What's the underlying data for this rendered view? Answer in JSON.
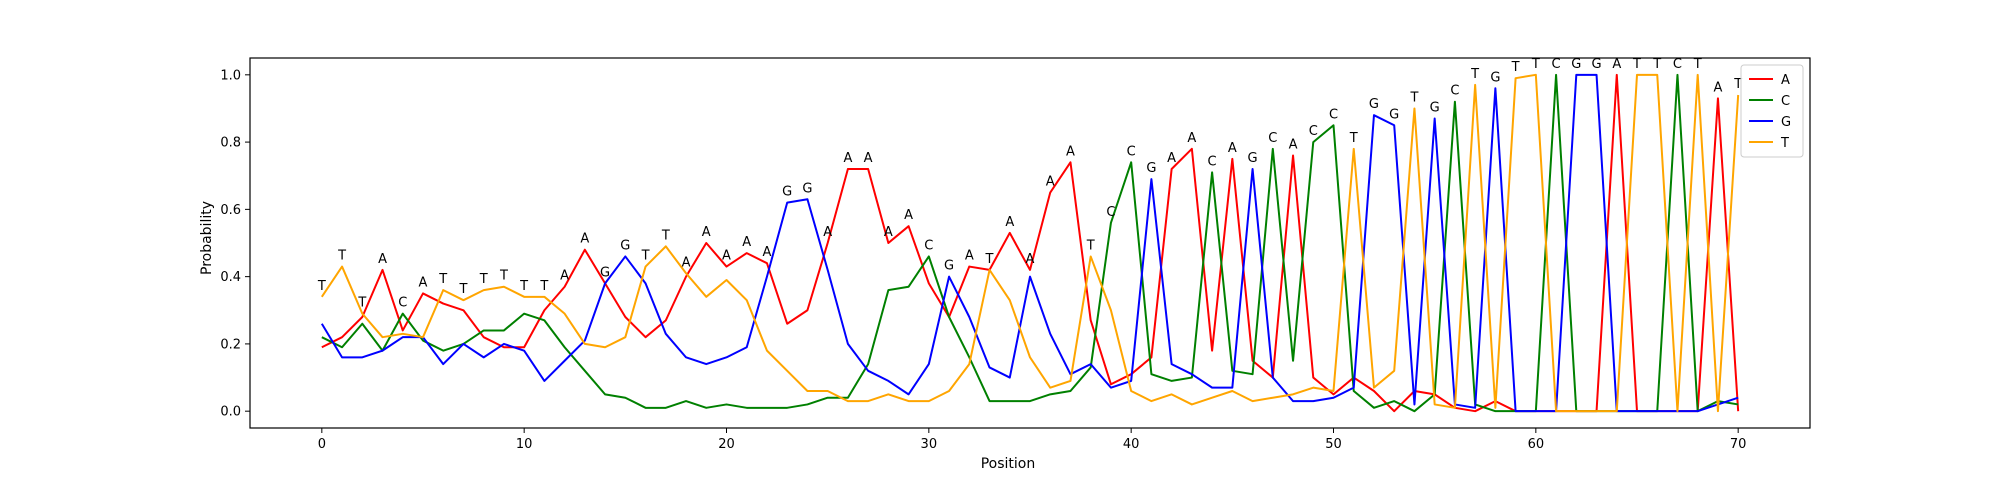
{
  "chart_data": {
    "type": "line",
    "title": "",
    "xlabel": "Position",
    "ylabel": "Probability",
    "xlim": [
      -3.55,
      73.55
    ],
    "ylim": [
      -0.05,
      1.05
    ],
    "xticks": [
      0,
      10,
      20,
      30,
      40,
      50,
      60,
      70
    ],
    "yticks": [
      0.0,
      0.2,
      0.4,
      0.6,
      0.8,
      1.0
    ],
    "grid": false,
    "legend_position": "top-right",
    "x": [
      0,
      1,
      2,
      3,
      4,
      5,
      6,
      7,
      8,
      9,
      10,
      11,
      12,
      13,
      14,
      15,
      16,
      17,
      18,
      19,
      20,
      21,
      22,
      23,
      24,
      25,
      26,
      27,
      28,
      29,
      30,
      31,
      32,
      33,
      34,
      35,
      36,
      37,
      38,
      39,
      40,
      41,
      42,
      43,
      44,
      45,
      46,
      47,
      48,
      49,
      50,
      51,
      52,
      53,
      54,
      55,
      56,
      57,
      58,
      59,
      60,
      61,
      62,
      63,
      64,
      65,
      66,
      67,
      68,
      69,
      70
    ],
    "series": [
      {
        "name": "A",
        "color": "#ff0000",
        "values": [
          0.19,
          0.22,
          0.28,
          0.42,
          0.24,
          0.35,
          0.32,
          0.3,
          0.22,
          0.19,
          0.19,
          0.3,
          0.37,
          0.48,
          0.38,
          0.28,
          0.22,
          0.27,
          0.4,
          0.5,
          0.43,
          0.47,
          0.44,
          0.26,
          0.3,
          0.5,
          0.72,
          0.72,
          0.5,
          0.55,
          0.38,
          0.28,
          0.43,
          0.42,
          0.53,
          0.42,
          0.65,
          0.74,
          0.27,
          0.08,
          0.11,
          0.16,
          0.72,
          0.78,
          0.18,
          0.75,
          0.15,
          0.1,
          0.76,
          0.1,
          0.05,
          0.1,
          0.06,
          0.0,
          0.06,
          0.05,
          0.01,
          0.0,
          0.03,
          0.0,
          0.0,
          0.0,
          0.0,
          0.0,
          1.0,
          0.0,
          0.0,
          0.0,
          0.0,
          0.93,
          0.0
        ]
      },
      {
        "name": "C",
        "color": "#008000",
        "values": [
          0.22,
          0.19,
          0.26,
          0.18,
          0.29,
          0.21,
          0.18,
          0.2,
          0.24,
          0.24,
          0.29,
          0.27,
          0.19,
          0.12,
          0.05,
          0.04,
          0.01,
          0.01,
          0.03,
          0.01,
          0.02,
          0.01,
          0.01,
          0.01,
          0.02,
          0.04,
          0.04,
          0.14,
          0.36,
          0.37,
          0.46,
          0.28,
          0.16,
          0.03,
          0.03,
          0.03,
          0.05,
          0.06,
          0.13,
          0.56,
          0.74,
          0.11,
          0.09,
          0.1,
          0.71,
          0.12,
          0.11,
          0.78,
          0.15,
          0.8,
          0.85,
          0.06,
          0.01,
          0.03,
          0.0,
          0.05,
          0.92,
          0.02,
          0.0,
          0.0,
          0.0,
          1.0,
          0.0,
          0.0,
          0.0,
          0.0,
          0.0,
          1.0,
          0.0,
          0.03,
          0.02
        ]
      },
      {
        "name": "G",
        "color": "#0000ff",
        "values": [
          0.26,
          0.16,
          0.16,
          0.18,
          0.22,
          0.22,
          0.14,
          0.2,
          0.16,
          0.2,
          0.18,
          0.09,
          0.15,
          0.21,
          0.38,
          0.46,
          0.38,
          0.23,
          0.16,
          0.14,
          0.16,
          0.19,
          0.4,
          0.62,
          0.63,
          0.42,
          0.2,
          0.12,
          0.09,
          0.05,
          0.14,
          0.4,
          0.28,
          0.13,
          0.1,
          0.4,
          0.23,
          0.11,
          0.14,
          0.07,
          0.09,
          0.69,
          0.14,
          0.11,
          0.07,
          0.07,
          0.72,
          0.1,
          0.03,
          0.03,
          0.04,
          0.07,
          0.88,
          0.85,
          0.02,
          0.87,
          0.02,
          0.01,
          0.96,
          0.0,
          0.0,
          0.0,
          1.0,
          1.0,
          0.0,
          0.0,
          0.0,
          0.0,
          0.0,
          0.02,
          0.04
        ]
      },
      {
        "name": "T",
        "color": "#ffa500",
        "values": [
          0.34,
          0.43,
          0.29,
          0.22,
          0.23,
          0.22,
          0.36,
          0.33,
          0.36,
          0.37,
          0.34,
          0.34,
          0.29,
          0.2,
          0.19,
          0.22,
          0.43,
          0.49,
          0.41,
          0.34,
          0.39,
          0.33,
          0.18,
          0.12,
          0.06,
          0.06,
          0.03,
          0.03,
          0.05,
          0.03,
          0.03,
          0.06,
          0.14,
          0.42,
          0.33,
          0.16,
          0.07,
          0.09,
          0.46,
          0.3,
          0.06,
          0.03,
          0.05,
          0.02,
          0.04,
          0.06,
          0.03,
          0.04,
          0.05,
          0.07,
          0.06,
          0.78,
          0.07,
          0.12,
          0.9,
          0.02,
          0.01,
          0.97,
          0.01,
          0.99,
          1.0,
          0.0,
          0.0,
          0.0,
          0.0,
          1.0,
          1.0,
          0.0,
          1.0,
          0.0,
          0.94
        ]
      }
    ],
    "annotations": [
      "T",
      "T",
      "T",
      "A",
      "C",
      "A",
      "T",
      "T",
      "T",
      "T",
      "T",
      "T",
      "A",
      "A",
      "G",
      "G",
      "T",
      "T",
      "A",
      "A",
      "A",
      "A",
      "A",
      "G",
      "G",
      "A",
      "A",
      "A",
      "A",
      "A",
      "C",
      "G",
      "A",
      "T",
      "A",
      "A",
      "A",
      "A",
      "T",
      "C",
      "C",
      "G",
      "A",
      "A",
      "C",
      "A",
      "G",
      "C",
      "A",
      "C",
      "C",
      "T",
      "G",
      "G",
      "T",
      "G",
      "C",
      "T",
      "G",
      "T",
      "T",
      "C",
      "G",
      "G",
      "A",
      "T",
      "T",
      "C",
      "T",
      "A",
      "T"
    ]
  }
}
